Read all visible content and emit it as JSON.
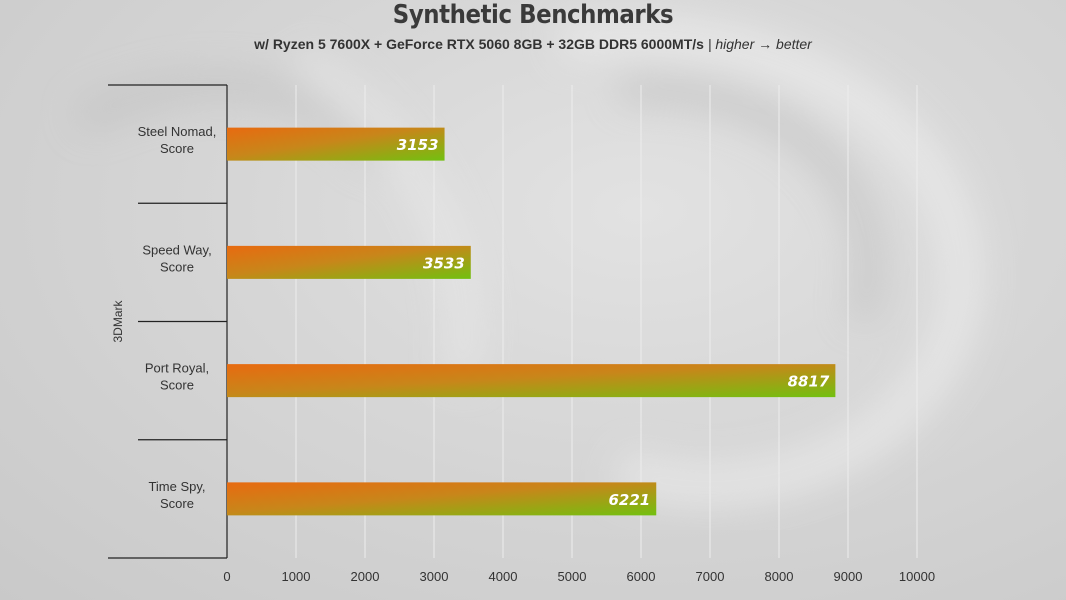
{
  "chart_data": {
    "type": "bar",
    "orientation": "horizontal",
    "title": "Synthetic Benchmarks",
    "subtitle": "w/ Ryzen 5 7600X + GeForce RTX 5060 8GB + 32GB DDR5 6000MT/s",
    "subtitle_note": "| higher → better",
    "group_label": "3DMark",
    "categories": [
      "Steel Nomad,\nScore",
      "Speed Way,\nScore",
      "Port Royal,\nScore",
      "Time Spy,\nScore"
    ],
    "values": [
      3153,
      3533,
      8817,
      6221
    ],
    "xlim": [
      0,
      10000
    ],
    "xticks": [
      0,
      1000,
      2000,
      3000,
      4000,
      5000,
      6000,
      7000,
      8000,
      9000,
      10000
    ],
    "grid": "vertical",
    "bar_gradient": [
      "#e86a10",
      "#72c010"
    ],
    "label_color": "#ffffff"
  }
}
